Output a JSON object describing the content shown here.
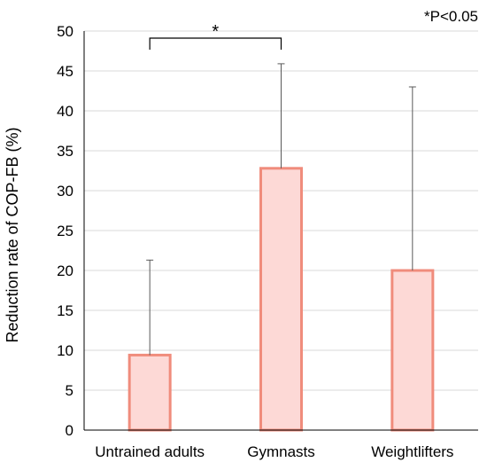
{
  "chart_data": {
    "type": "bar",
    "categories": [
      "Untrained adults",
      "Gymnasts",
      "Weightlifters"
    ],
    "values": [
      9.4,
      32.8,
      20.0
    ],
    "error_upper": [
      21.3,
      45.9,
      43.0
    ],
    "title": "",
    "xlabel": "",
    "ylabel": "Reduction rate of COP-FB (%)",
    "ylim": [
      0,
      50
    ],
    "yticks": [
      0,
      5,
      10,
      15,
      20,
      25,
      30,
      35,
      40,
      45,
      50
    ],
    "grid": true,
    "annotations": {
      "significance_marker": "*",
      "significance_between": [
        "Untrained adults",
        "Gymnasts"
      ],
      "note": "*P<0.05"
    },
    "colors": {
      "bar_fill": "#fdd9d6",
      "bar_stroke": "#f08c7c",
      "error_bar": "#595959",
      "grid": "#d9d9d9",
      "axis": "#000000"
    }
  }
}
